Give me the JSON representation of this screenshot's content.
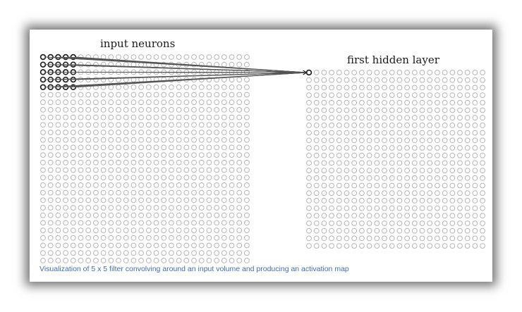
{
  "diagram": {
    "input_label": "input neurons",
    "hidden_label": "first hidden layer",
    "caption": "Visualization of 5 x 5 filter convolving around an input volume and producing an activation map",
    "input_grid": {
      "rows": 28,
      "cols": 28
    },
    "hidden_grid": {
      "rows": 24,
      "cols": 24
    },
    "filter": {
      "rows": 5,
      "cols": 5
    },
    "colors": {
      "neuron_outline": "#b5b5b5",
      "active_neuron": "#222222",
      "connection_line": "#555555",
      "caption": "#3f6eb5"
    }
  }
}
